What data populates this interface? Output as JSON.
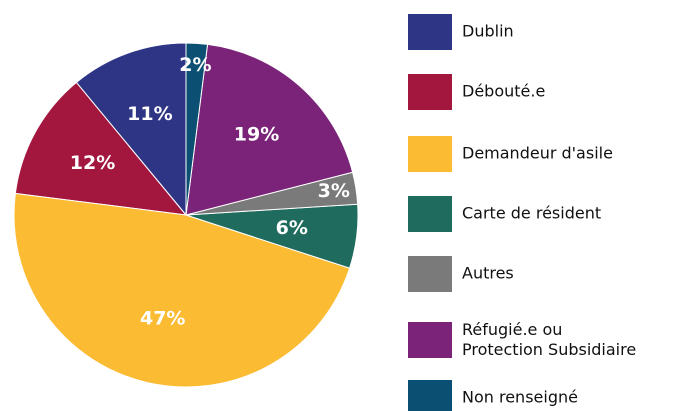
{
  "chart_data": {
    "type": "pie",
    "categories": [
      "Dublin",
      "Débouté.e",
      "Demandeur d'asile",
      "Carte de résident",
      "Autres",
      "Réfugié.e ou\nProtection Subsidiaire",
      "Non renseigné"
    ],
    "values": [
      11,
      12,
      47,
      6,
      3,
      19,
      2
    ],
    "value_labels": [
      "11%",
      "12%",
      "47%",
      "6%",
      "3%",
      "19%",
      "2%"
    ],
    "colors": [
      "#2e3585",
      "#a3173f",
      "#fbbb32",
      "#1f6b5e",
      "#7a7a7a",
      "#7a2378",
      "#0b4f72"
    ],
    "legend": "right"
  }
}
